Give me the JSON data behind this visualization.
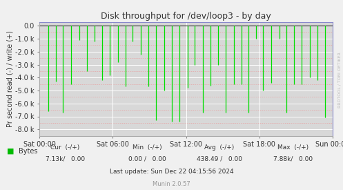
{
  "title": "Disk throughput for /dev/loop3 - by day",
  "ylabel": "Pr second read (-) / write (+)",
  "background_color": "#f0f0f0",
  "plot_bg_color": "#d8d8d8",
  "grid_color_major": "#ffffff",
  "grid_color_minor": "#e8a0a0",
  "line_color": "#00dd00",
  "border_color": "#aaaaaa",
  "top_border_color": "#cc0000",
  "ylim": [
    -8500,
    300
  ],
  "yticks": [
    0,
    -1000,
    -2000,
    -3000,
    -4000,
    -5000,
    -6000,
    -7000,
    -8000
  ],
  "ytick_labels": [
    "0.0",
    "-1.0 k",
    "-2.0 k",
    "-3.0 k",
    "-4.0 k",
    "-5.0 k",
    "-6.0 k",
    "-7.0 k",
    "-8.0 k"
  ],
  "xtick_labels": [
    "Sat 00:00",
    "Sat 06:00",
    "Sat 12:00",
    "Sat 18:00",
    "Sun 00:00"
  ],
  "xtick_positions": [
    0.0,
    0.25,
    0.5,
    0.75,
    1.0
  ],
  "legend_label": "Bytes",
  "legend_color": "#00bb00",
  "footer_update": "Last update: Sun Dec 22 04:15:56 2024",
  "footer_munin": "Munin 2.0.57",
  "rrdtool_text": "RRDTOOL / TOBI OETIKER",
  "spike_positions": [
    0.03,
    0.055,
    0.08,
    0.108,
    0.135,
    0.162,
    0.188,
    0.213,
    0.24,
    0.268,
    0.293,
    0.318,
    0.345,
    0.372,
    0.398,
    0.425,
    0.452,
    0.478,
    0.505,
    0.53,
    0.558,
    0.583,
    0.608,
    0.635,
    0.663,
    0.688,
    0.713,
    0.738,
    0.763,
    0.79,
    0.818,
    0.843,
    0.868,
    0.895,
    0.922,
    0.948,
    0.975
  ],
  "spike_depths": [
    -6600,
    -4300,
    -6700,
    -4500,
    -1100,
    -3500,
    -1200,
    -4200,
    -3800,
    -2800,
    -4700,
    -1200,
    -2200,
    -4700,
    -7300,
    -5000,
    -7400,
    -7400,
    -4800,
    -3000,
    -6700,
    -4600,
    -3000,
    -6700,
    -4500,
    -4500,
    -6700,
    -1000,
    -5000,
    -4400,
    -1000,
    -6700,
    -4500,
    -4500,
    -4000,
    -4200,
    -7100
  ]
}
